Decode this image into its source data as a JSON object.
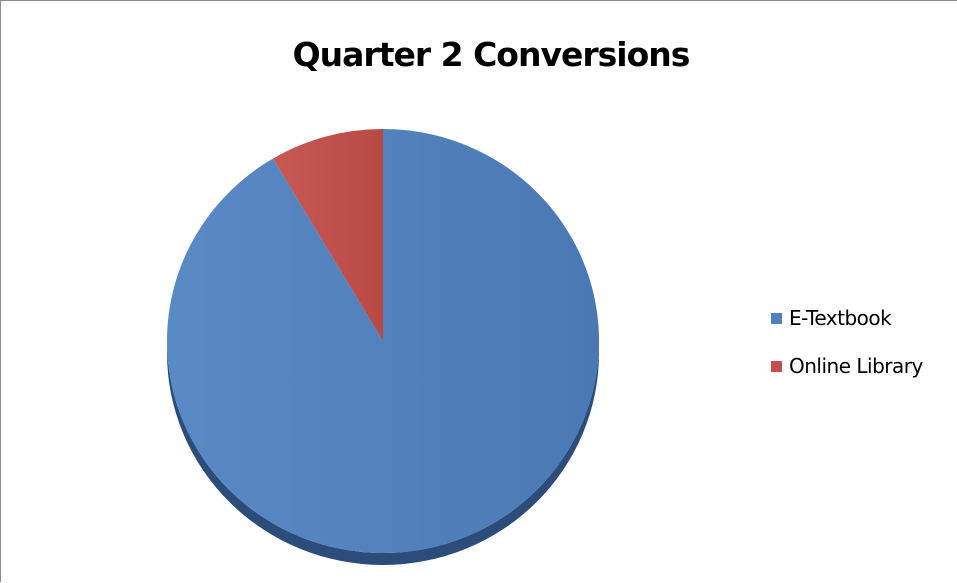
{
  "chart_data": {
    "type": "pie",
    "title": "Quarter 2 Conversions",
    "categories": [
      "E-Textbook",
      "Online Library"
    ],
    "values": [
      91.5,
      8.5
    ],
    "colors": [
      "#4f81bd",
      "#c0504d"
    ],
    "legend_position": "right"
  }
}
